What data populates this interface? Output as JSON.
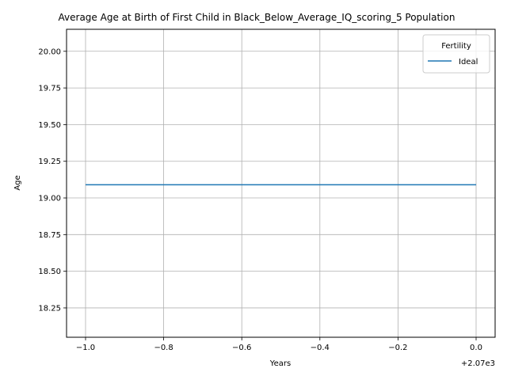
{
  "chart_data": {
    "type": "line",
    "title": "Average Age at Birth of First Child in Black_Below_Average_IQ_scoring_5 Population",
    "xlabel": "Years",
    "ylabel": "Age",
    "x_tick_labels": [
      "−1.0",
      "−0.8",
      "−0.6",
      "−0.4",
      "−0.2",
      "0.0"
    ],
    "x_tick_values": [
      -1.0,
      -0.8,
      -0.6,
      -0.4,
      -0.2,
      0.0
    ],
    "x_offset_label": "+2.07e3",
    "y_tick_labels": [
      "18.25",
      "18.50",
      "18.75",
      "19.00",
      "19.25",
      "19.50",
      "19.75",
      "20.00"
    ],
    "y_tick_values": [
      18.25,
      18.5,
      18.75,
      19.0,
      19.25,
      19.5,
      19.75,
      20.0
    ],
    "xlim": [
      2069.0,
      2070.0
    ],
    "ylim": [
      18.05,
      20.15
    ],
    "grid": true,
    "legend": {
      "title": "Fertility",
      "position": "top-right"
    },
    "series": [
      {
        "name": "Ideal",
        "color": "#1f77b4",
        "x": [
          2069,
          2070
        ],
        "y": [
          19.09,
          19.09
        ]
      }
    ]
  }
}
